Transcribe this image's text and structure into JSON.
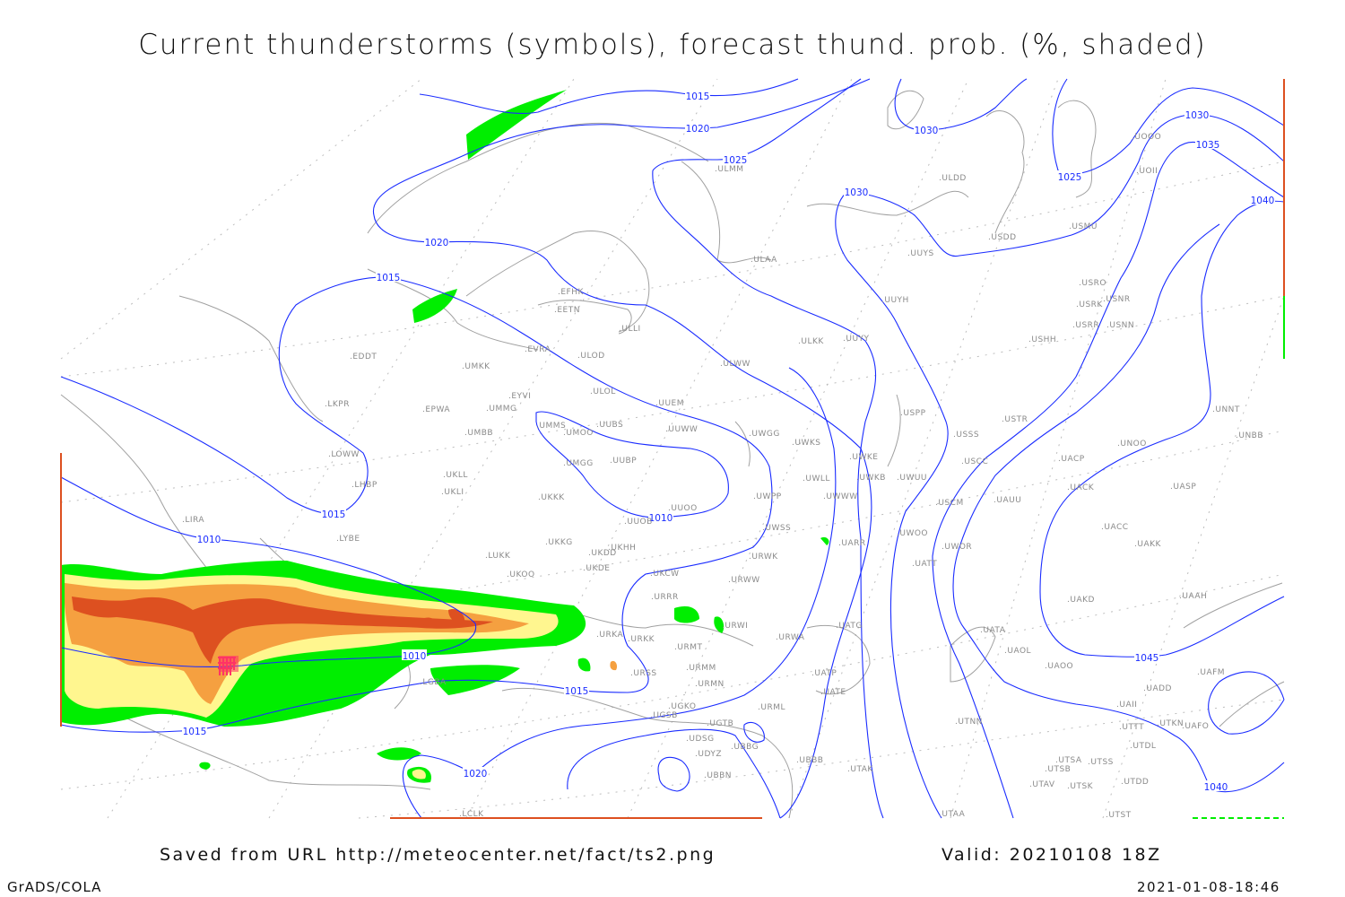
{
  "title": "Current thunderstorms (symbols), forecast thund. prob. (%, shaded)",
  "footer": {
    "saved_from": "Saved from URL http://meteocenter.net/fact/ts2.png",
    "valid": "Valid: 20210108 18Z",
    "software": "GrADS/COLA",
    "timestamp": "2021-01-08-18:46"
  },
  "colors": {
    "isobar": "#1a2cff",
    "coastline": "#a0a0a0",
    "prob_low": "#00ee00",
    "prob_mid": "#fff68f",
    "prob_high": "#f5a040",
    "prob_max": "#dd5020",
    "thunderstorm_symbol": "#ff3366"
  },
  "isobar_labels": [
    "1015",
    "1020",
    "1025",
    "1020",
    "1015",
    "1015",
    "1010",
    "1010",
    "1010",
    "1015",
    "1015",
    "1020",
    "1030",
    "1030",
    "1025",
    "1030",
    "1035",
    "1040",
    "1045",
    "1040"
  ],
  "stations": [
    "EDDT",
    "UMKK",
    "EVRA",
    "ULOD",
    "EFHK",
    "EETN",
    "ULLI",
    "ULWW",
    "ULOL",
    "UUEM",
    "EYVI",
    "EPWA",
    "UMMG",
    "LKPR",
    "UMBB",
    "UMMS",
    "UMOO",
    "UUBS",
    "UUWW",
    "UWGG",
    "LOWW",
    "UKLL",
    "LHBP",
    "UKLI",
    "UMGG",
    "UUBP",
    "UKKK",
    "UUOO",
    "UUOB",
    "UWPP",
    "UWSS",
    "LIRA",
    "LYBE",
    "LUKK",
    "UKKG",
    "UKDD",
    "UKHH",
    "UKDE",
    "UKOO",
    "UKCW",
    "URWK",
    "URWW",
    "URRR",
    "URWI",
    "URKA",
    "URKK",
    "URMT",
    "URSS",
    "URMM",
    "URMN",
    "LGBA",
    "UGKO",
    "UGSB",
    "UGTB",
    "UDSG",
    "UDYZ",
    "UBBG",
    "UBBN",
    "URML",
    "URWA",
    "UBBB",
    "LCLK",
    "UATG",
    "UATP",
    "UATE",
    "UTAK",
    "UARR",
    "UWOO",
    "UWOR",
    "UATT",
    "USCM",
    "UAUU",
    "USCC",
    "UACP",
    "UACK",
    "UASP",
    "UACC",
    "UAKK",
    "UAKD",
    "UATA",
    "UAOL",
    "UAOO",
    "UAAH",
    "UAFM",
    "UADD",
    "UAII",
    "UTNN",
    "UTTT",
    "UTKN",
    "UAFO",
    "UTDL",
    "UTSA",
    "UTSS",
    "UTSB",
    "UTAV",
    "UTSK",
    "UTDD",
    "UTAA",
    "UTST",
    "UWKE",
    "UWLL",
    "UWKB",
    "UWUU",
    "UWWW",
    "UWKS",
    "USSS",
    "USTR",
    "USPP",
    "ULKK",
    "UUYY",
    "UUYH",
    "ULAA",
    "ULMM",
    "UUYS",
    "ULDD",
    "USDD",
    "USMU",
    "USRO",
    "USRK",
    "USNR",
    "USRR",
    "USNN",
    "USHH",
    "UOOO",
    "UOII",
    "UNOO",
    "UNNT",
    "UNBB"
  ]
}
